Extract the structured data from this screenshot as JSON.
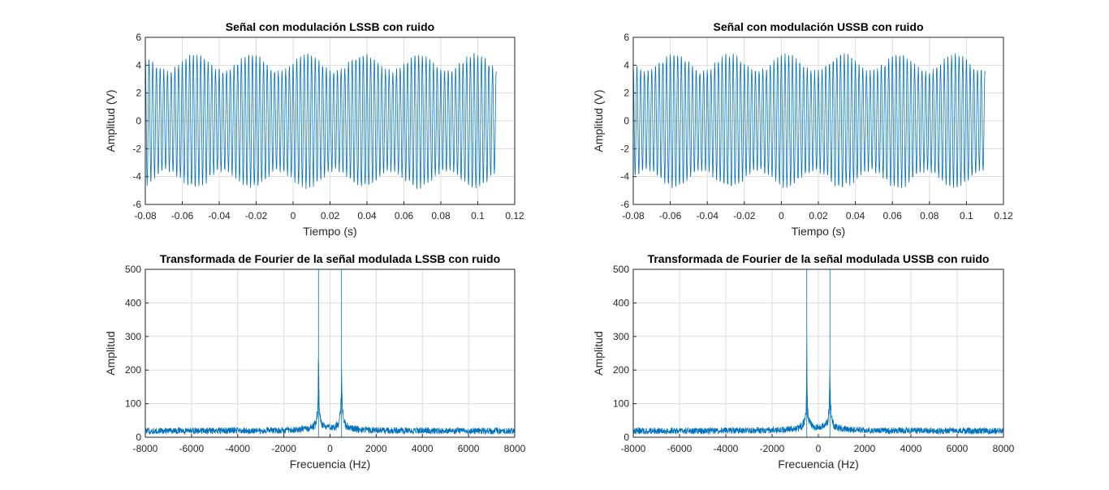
{
  "chart_data": [
    {
      "type": "line",
      "title": "Señal con modulación LSSB con ruido",
      "xlabel": "Tiempo (s)",
      "ylabel": "Amplitud (V)",
      "xlim": [
        -0.08,
        0.12
      ],
      "ylim": [
        -6,
        6
      ],
      "xticks": [
        "-0.08",
        "-0.06",
        "-0.04",
        "-0.02",
        "0",
        "0.02",
        "0.04",
        "0.06",
        "0.08",
        "0.1",
        "0.12"
      ],
      "yticks": [
        "-6",
        "-4",
        "-2",
        "0",
        "2",
        "4",
        "6"
      ],
      "grid": true,
      "series": [
        {
          "kind": "time",
          "t_start": -0.08,
          "t_end": 0.11,
          "carrier_hz": 500,
          "amplitude_v": 4.1,
          "envelope_swing_v": 0.6,
          "envelope_hz": 33,
          "noise_v": 0.35,
          "color": "#0072BD"
        }
      ]
    },
    {
      "type": "line",
      "title": "Señal con modulación USSB con ruido",
      "xlabel": "Tiempo (s)",
      "ylabel": "Amplitud (V)",
      "xlim": [
        -0.08,
        0.12
      ],
      "ylim": [
        -6,
        6
      ],
      "xticks": [
        "-0.08",
        "-0.06",
        "-0.04",
        "-0.02",
        "0",
        "0.02",
        "0.04",
        "0.06",
        "0.08",
        "0.1",
        "0.12"
      ],
      "yticks": [
        "-6",
        "-4",
        "-2",
        "0",
        "2",
        "4",
        "6"
      ],
      "grid": true,
      "series": [
        {
          "kind": "time",
          "t_start": -0.08,
          "t_end": 0.11,
          "carrier_hz": 500,
          "amplitude_v": 4.1,
          "envelope_swing_v": 0.6,
          "envelope_hz": 33,
          "noise_v": 0.35,
          "color": "#0072BD"
        }
      ]
    },
    {
      "type": "line",
      "title": "Transformada de Fourier de la señal modulada LSSB con ruido",
      "xlabel": "Frecuencia (Hz)",
      "ylabel": "Amplitud",
      "xlim": [
        -8000,
        8000
      ],
      "ylim": [
        0,
        500
      ],
      "xticks": [
        "-8000",
        "-6000",
        "-4000",
        "-2000",
        "0",
        "2000",
        "4000",
        "6000",
        "8000"
      ],
      "yticks": [
        "0",
        "100",
        "200",
        "300",
        "400",
        "500"
      ],
      "grid": true,
      "series": [
        {
          "kind": "spectrum",
          "peaks_hz": [
            -500,
            500
          ],
          "peak_amplitude": 500,
          "noise_floor": 18,
          "noise_spread": 12,
          "color": "#0072BD"
        }
      ]
    },
    {
      "type": "line",
      "title": "Transformada de Fourier de la señal modulada USSB con ruido",
      "xlabel": "Frecuencia (Hz)",
      "ylabel": "Amplitud",
      "xlim": [
        -8000,
        8000
      ],
      "ylim": [
        0,
        500
      ],
      "xticks": [
        "-8000",
        "-6000",
        "-4000",
        "-2000",
        "0",
        "2000",
        "4000",
        "6000",
        "8000"
      ],
      "yticks": [
        "0",
        "100",
        "200",
        "300",
        "400",
        "500"
      ],
      "grid": true,
      "series": [
        {
          "kind": "spectrum",
          "peaks_hz": [
            -500,
            500
          ],
          "peak_amplitude": 500,
          "noise_floor": 18,
          "noise_spread": 12,
          "color": "#0072BD"
        }
      ]
    }
  ]
}
